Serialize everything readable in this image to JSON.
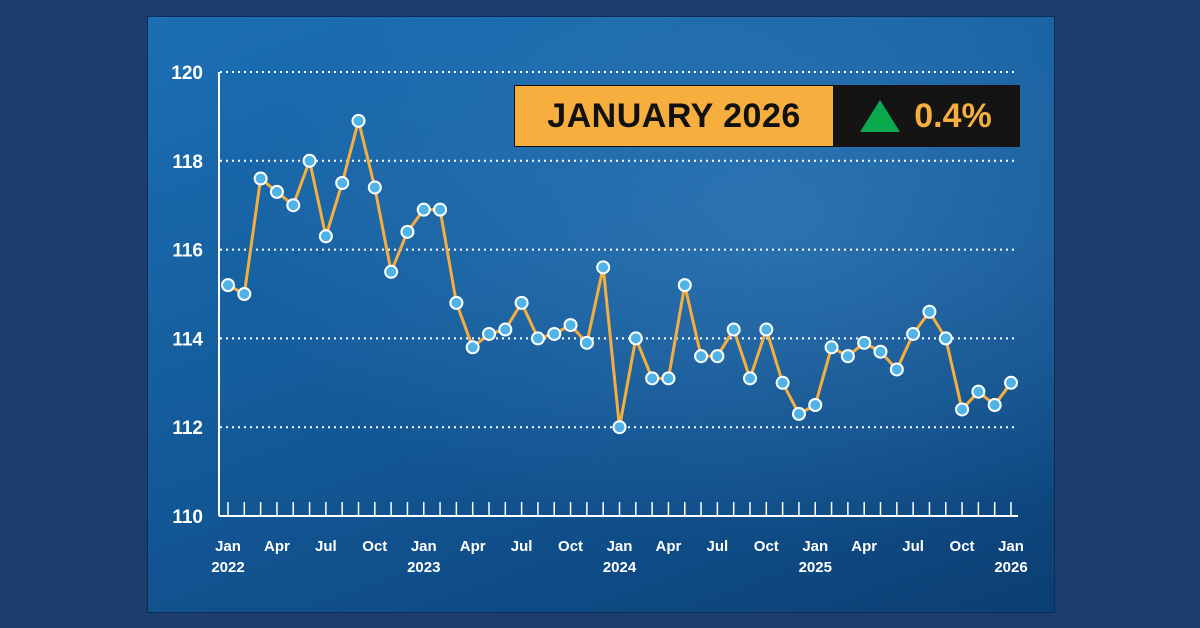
{
  "badge": {
    "month_label": "JANUARY 2026",
    "change": "0.4%",
    "direction": "up",
    "arrow_icon": "triangle-up-icon",
    "arrow_color": "#0aa84f",
    "accent_color": "#f6ae3f"
  },
  "chart_data": {
    "type": "line",
    "title": "",
    "xlabel": "",
    "ylabel": "",
    "ylim": [
      110,
      120
    ],
    "yticks": [
      110,
      112,
      114,
      116,
      118,
      120
    ],
    "grid": "horizontal dotted",
    "line_color": "#f6ae3f",
    "marker_color": "#4fb3e8",
    "xtick_labels": [
      {
        "month": "Jan",
        "year": "2022",
        "index": 0
      },
      {
        "month": "Apr",
        "year": "",
        "index": 3
      },
      {
        "month": "Jul",
        "year": "",
        "index": 6
      },
      {
        "month": "Oct",
        "year": "",
        "index": 9
      },
      {
        "month": "Jan",
        "year": "2023",
        "index": 12
      },
      {
        "month": "Apr",
        "year": "",
        "index": 15
      },
      {
        "month": "Jul",
        "year": "",
        "index": 18
      },
      {
        "month": "Oct",
        "year": "",
        "index": 21
      },
      {
        "month": "Jan",
        "year": "2024",
        "index": 24
      },
      {
        "month": "Apr",
        "year": "",
        "index": 27
      },
      {
        "month": "Jul",
        "year": "",
        "index": 30
      },
      {
        "month": "Oct",
        "year": "",
        "index": 33
      },
      {
        "month": "Jan",
        "year": "2025",
        "index": 36
      },
      {
        "month": "Apr",
        "year": "",
        "index": 39
      },
      {
        "month": "Jul",
        "year": "",
        "index": 42
      },
      {
        "month": "Oct",
        "year": "",
        "index": 45
      },
      {
        "month": "Jan",
        "year": "2026",
        "index": 48
      }
    ],
    "x_start": "2022-01",
    "x_end": "2026-01",
    "values": [
      115.2,
      115.0,
      117.6,
      117.3,
      117.0,
      118.0,
      116.3,
      117.5,
      118.9,
      117.4,
      115.5,
      116.4,
      116.9,
      116.9,
      114.8,
      113.8,
      114.1,
      114.2,
      114.8,
      114.0,
      114.1,
      114.3,
      113.9,
      115.6,
      112.0,
      114.0,
      113.1,
      113.1,
      115.2,
      113.6,
      113.6,
      114.2,
      113.1,
      114.2,
      113.0,
      112.3,
      112.5,
      113.8,
      113.6,
      113.9,
      113.7,
      113.3,
      114.1,
      114.6,
      114.0,
      112.4,
      112.8,
      112.5,
      113.0
    ]
  }
}
